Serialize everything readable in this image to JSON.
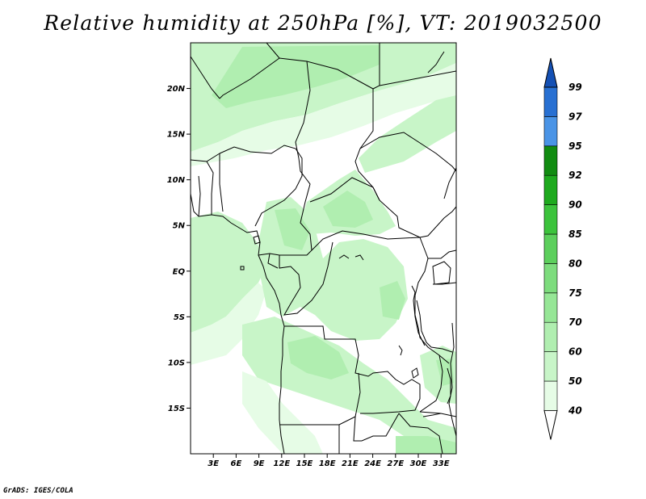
{
  "title": "Relative humidity at 250hPa [%], VT: 2019032500",
  "footer": "GrADS: IGES/COLA",
  "map": {
    "lon_range": [
      0,
      35
    ],
    "lat_range": [
      -20,
      25
    ],
    "lat_labels": [
      {
        "lat": 20,
        "text": "20N"
      },
      {
        "lat": 15,
        "text": "15N"
      },
      {
        "lat": 10,
        "text": "10N"
      },
      {
        "lat": 5,
        "text": "5N"
      },
      {
        "lat": 0,
        "text": "EQ"
      },
      {
        "lat": -5,
        "text": "5S"
      },
      {
        "lat": -10,
        "text": "10S"
      },
      {
        "lat": -15,
        "text": "15S"
      }
    ],
    "lon_labels": [
      {
        "lon": 3,
        "text": "3E"
      },
      {
        "lon": 6,
        "text": "6E"
      },
      {
        "lon": 9,
        "text": "9E"
      },
      {
        "lon": 12,
        "text": "12E"
      },
      {
        "lon": 15,
        "text": "15E"
      },
      {
        "lon": 18,
        "text": "18E"
      },
      {
        "lon": 21,
        "text": "21E"
      },
      {
        "lon": 24,
        "text": "24E"
      },
      {
        "lon": 27,
        "text": "27E"
      },
      {
        "lon": 30,
        "text": "30E"
      },
      {
        "lon": 33,
        "text": "33E"
      }
    ]
  },
  "colorbar": {
    "levels": [
      "40",
      "50",
      "60",
      "70",
      "75",
      "80",
      "85",
      "90",
      "92",
      "95",
      "97",
      "99"
    ],
    "colors": [
      "#ffffff",
      "#e6fce6",
      "#c8f5c8",
      "#b0eeb0",
      "#96e696",
      "#7ddc7d",
      "#5ccf5c",
      "#3cc33c",
      "#1eaa1e",
      "#118c11",
      "#4a94e6",
      "#2870d2",
      "#1450b4"
    ]
  }
}
